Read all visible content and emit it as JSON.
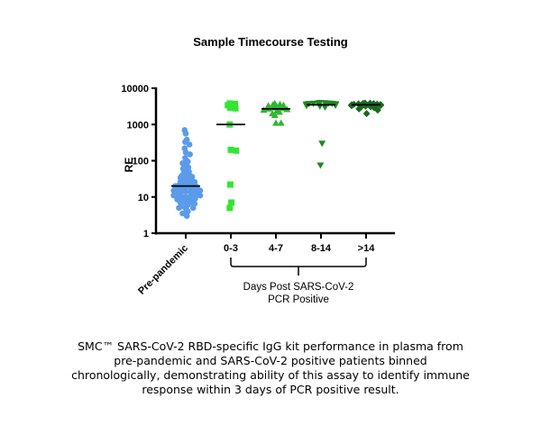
{
  "chart_data": {
    "type": "scatter",
    "title": "Sample Timecourse Testing",
    "ylabel": "RE",
    "yscale": "log",
    "ylim": [
      1,
      10000
    ],
    "yticks": [
      "1",
      "10",
      "100",
      "1000",
      "10000"
    ],
    "ytick_values": [
      1,
      10,
      100,
      1000,
      10000
    ],
    "categories": [
      "Pre-pandemic",
      "0-3",
      "4-7",
      "8-14",
      ">14"
    ],
    "group_label": [
      "Days Post SARS-CoV-2",
      "PCR Positive"
    ],
    "series": [
      {
        "name": "Pre-pandemic",
        "marker": "circle",
        "color": "#5b9bea",
        "median": 20,
        "values": [
          700,
          560,
          380,
          330,
          280,
          220,
          170,
          150,
          120,
          100,
          95,
          85,
          75,
          65,
          60,
          55,
          50,
          45,
          42,
          40,
          38,
          36,
          34,
          32,
          30,
          29,
          28,
          27,
          26,
          25,
          24,
          23,
          22,
          21,
          20,
          20,
          19,
          19,
          18,
          18,
          17,
          17,
          16,
          16,
          15,
          15,
          14,
          14,
          14,
          13,
          13,
          12,
          12,
          12,
          11,
          11,
          10,
          10,
          10,
          9.5,
          9,
          9,
          8.5,
          8,
          8,
          7.5,
          7,
          7,
          6.5,
          6,
          6,
          5.5,
          5,
          5,
          4.5,
          4,
          3.5,
          3
        ]
      },
      {
        "name": "0-3",
        "marker": "square",
        "color": "#33e633",
        "median": 1000,
        "values": [
          3800,
          3700,
          3400,
          2900,
          2800,
          1000,
          200,
          190,
          22,
          7,
          5
        ]
      },
      {
        "name": "4-7",
        "marker": "triangle-up",
        "color": "#2eb82e",
        "median": 2700,
        "values": [
          3800,
          3600,
          3500,
          3400,
          3300,
          3200,
          3000,
          2900,
          2800,
          2700,
          2600,
          2500,
          2400,
          2200,
          2000,
          1800,
          1100,
          1100
        ]
      },
      {
        "name": "8-14",
        "marker": "triangle-down",
        "color": "#1f8a1f",
        "median": 3500,
        "values": [
          4000,
          3950,
          3900,
          3850,
          3800,
          3800,
          3750,
          3700,
          3650,
          3600,
          3550,
          3500,
          3450,
          3400,
          3300,
          3200,
          3000,
          300,
          75
        ]
      },
      {
        "name": ">14",
        "marker": "diamond",
        "color": "#1a6a1e",
        "median": 3500,
        "values": [
          3900,
          3850,
          3800,
          3750,
          3700,
          3650,
          3600,
          3550,
          3500,
          3450,
          3400,
          3350,
          3300,
          3200,
          3100,
          3000,
          2900,
          2700,
          2500,
          2000
        ]
      }
    ]
  },
  "caption": [
    "SMC™ SARS-CoV-2 RBD-specific IgG kit performance in plasma from",
    "pre-pandemic and SARS-CoV-2 positive patients binned",
    "chronologically, demonstrating ability of this assay to identify immune",
    "response within 3 days of PCR positive result."
  ]
}
